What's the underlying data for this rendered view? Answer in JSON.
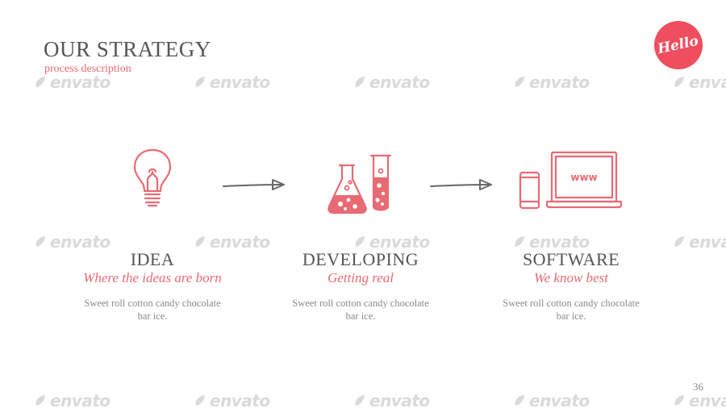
{
  "slide": {
    "title": "OUR STRATEGY",
    "subtitle": "process description",
    "badge_label": "Hello",
    "page_number": "36"
  },
  "watermark": {
    "text": "envato"
  },
  "steps": [
    {
      "title": "IDEA",
      "tagline": "Where the ideas are born",
      "description": "Sweet roll cotton candy chocolate bar ice.",
      "icon": "lightbulb-icon"
    },
    {
      "title": "DEVELOPING",
      "tagline": "Getting real",
      "description": "Sweet roll cotton candy chocolate bar ice.",
      "icon": "lab-flask-icon"
    },
    {
      "title": "SOFTWARE",
      "tagline": "We know best",
      "description": "Sweet roll cotton candy chocolate bar ice.",
      "icon": "devices-icon"
    }
  ],
  "devices_screen_text": "www",
  "colors": {
    "accent": "#e86a73",
    "badge": "#ee4e5e",
    "title": "#555555",
    "body": "#8a8a8a"
  }
}
